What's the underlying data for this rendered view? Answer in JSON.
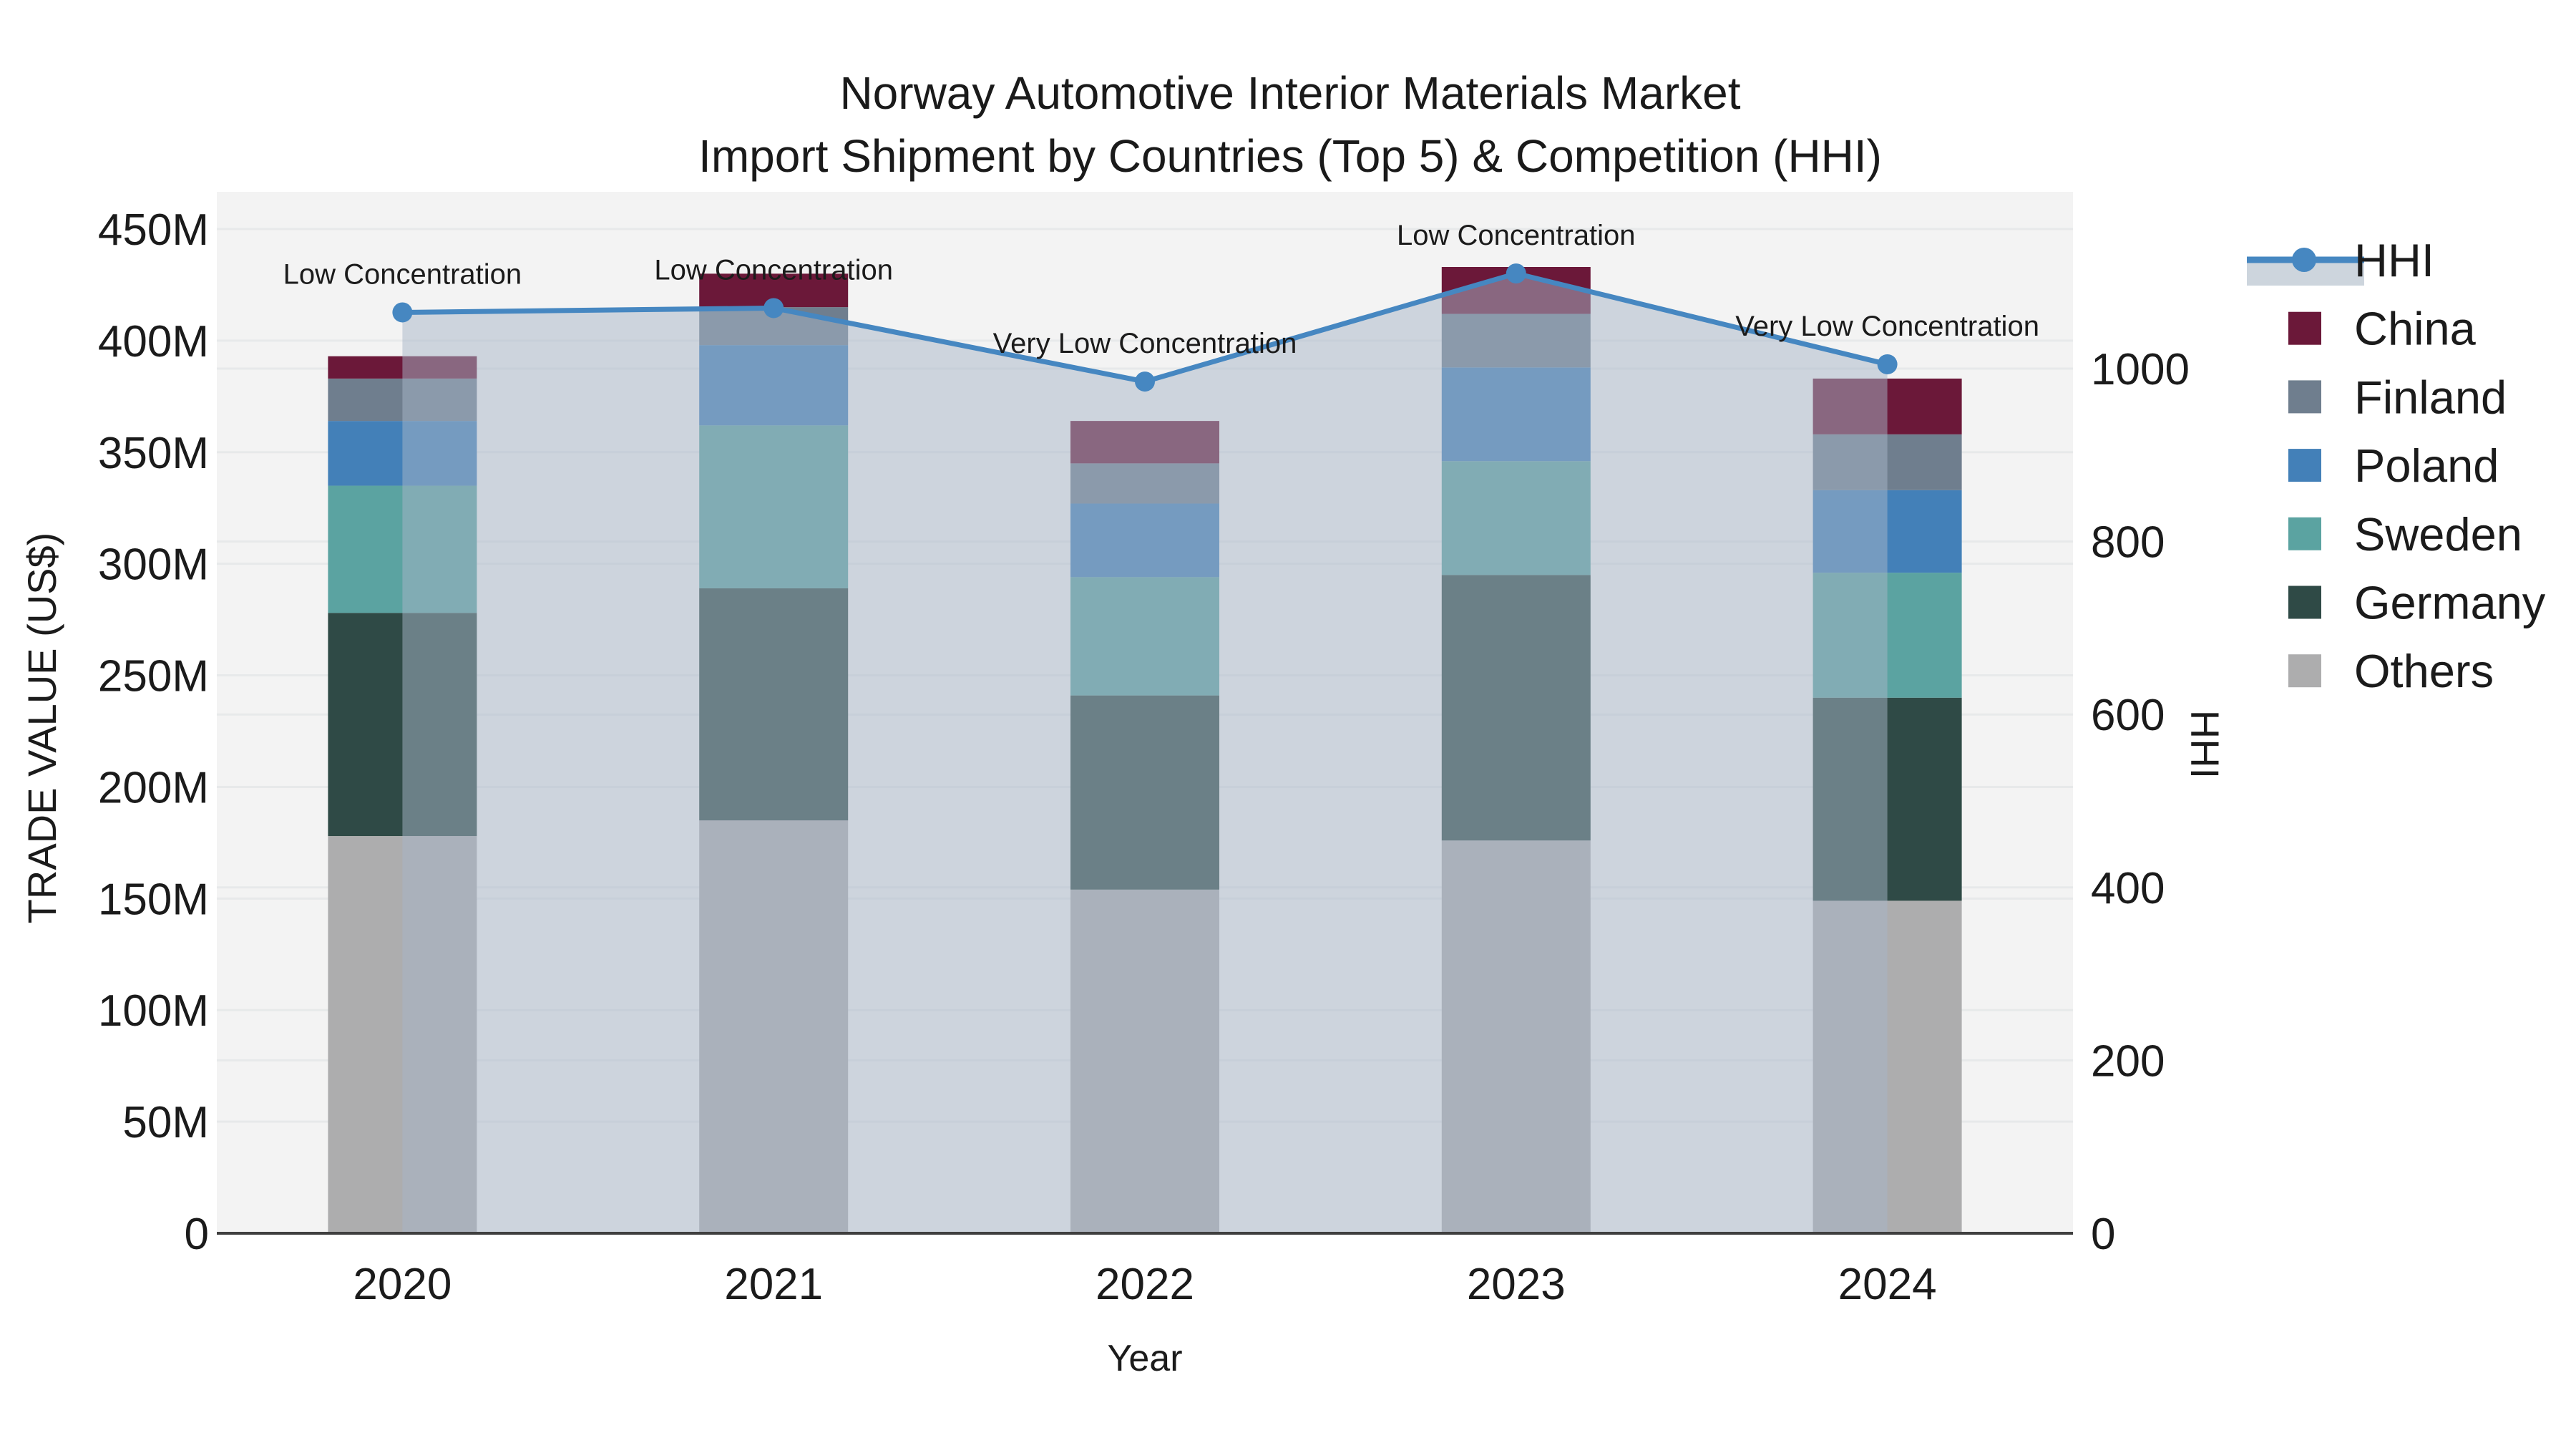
{
  "title": {
    "line1": "Norway Automotive Interior Materials Market",
    "line2": "Import Shipment by Countries (Top 5) & Competition (HHI)"
  },
  "axes": {
    "x": {
      "label": "Year",
      "ticks": [
        "2020",
        "2021",
        "2022",
        "2023",
        "2024"
      ]
    },
    "y_left": {
      "label": "TRADE VALUE (US$)",
      "ticks": [
        "0",
        "50M",
        "100M",
        "150M",
        "200M",
        "250M",
        "300M",
        "350M",
        "400M",
        "450M"
      ]
    },
    "y_right": {
      "label": "HHI",
      "ticks": [
        "0",
        "200",
        "400",
        "600",
        "800",
        "1000"
      ]
    }
  },
  "legend": {
    "items": [
      {
        "label": "HHI",
        "type": "line",
        "color": "#4687C1",
        "band_color": "#CDD5DD"
      },
      {
        "label": "China",
        "type": "swatch",
        "color": "#6B1839"
      },
      {
        "label": "Finland",
        "type": "swatch",
        "color": "#6F7E8E"
      },
      {
        "label": "Poland",
        "type": "swatch",
        "color": "#4380B8"
      },
      {
        "label": "Sweden",
        "type": "swatch",
        "color": "#5BA3A1"
      },
      {
        "label": "Germany",
        "type": "swatch",
        "color": "#2F4A46"
      },
      {
        "label": "Others",
        "type": "swatch",
        "color": "#ADADAE"
      }
    ]
  },
  "chart_data": {
    "type": "bar",
    "subtype": "stacked-bars-with-secondary-axis-line",
    "title": "Norway Automotive Interior Materials Market — Import Shipment by Countries (Top 5) & Competition (HHI)",
    "xlabel": "Year",
    "ylabel_left": "TRADE VALUE (US$)",
    "ylabel_right": "HHI",
    "values_unit": "US$ millions (left axis)",
    "categories": [
      "2020",
      "2021",
      "2022",
      "2023",
      "2024"
    ],
    "series": [
      {
        "name": "Others",
        "values": [
          178,
          185,
          154,
          176,
          149
        ],
        "color": "#ADADAE"
      },
      {
        "name": "Germany",
        "values": [
          100,
          104,
          87,
          119,
          91
        ],
        "color": "#2F4A46"
      },
      {
        "name": "Sweden",
        "values": [
          57,
          73,
          53,
          51,
          56
        ],
        "color": "#5BA3A1"
      },
      {
        "name": "Poland",
        "values": [
          29,
          36,
          33,
          42,
          37
        ],
        "color": "#4380B8"
      },
      {
        "name": "Finland",
        "values": [
          19,
          17,
          18,
          24,
          25
        ],
        "color": "#6F7E8E"
      },
      {
        "name": "China",
        "values": [
          10,
          15,
          19,
          21,
          25
        ],
        "color": "#6B1839"
      }
    ],
    "stack_order_bottom_to_top": [
      "Others",
      "Germany",
      "Sweden",
      "Poland",
      "Finland",
      "China"
    ],
    "stack_totals_millions": [
      393,
      430,
      364,
      433,
      383
    ],
    "line_series": {
      "name": "HHI",
      "axis": "right",
      "color": "#4687C1",
      "area_fill": "rgba(168,182,200,0.5)",
      "values": [
        1065,
        1070,
        985,
        1110,
        1005
      ]
    },
    "annotations": [
      {
        "category": "2020",
        "text": "Low Concentration"
      },
      {
        "category": "2021",
        "text": "Low Concentration"
      },
      {
        "category": "2022",
        "text": "Very Low Concentration"
      },
      {
        "category": "2023",
        "text": "Low Concentration"
      },
      {
        "category": "2024",
        "text": "Very Low Concentration"
      }
    ],
    "ylim_left_millions": [
      0,
      467
    ],
    "ylim_right": [
      0,
      1205
    ],
    "grid": true,
    "legend_position": "right"
  }
}
